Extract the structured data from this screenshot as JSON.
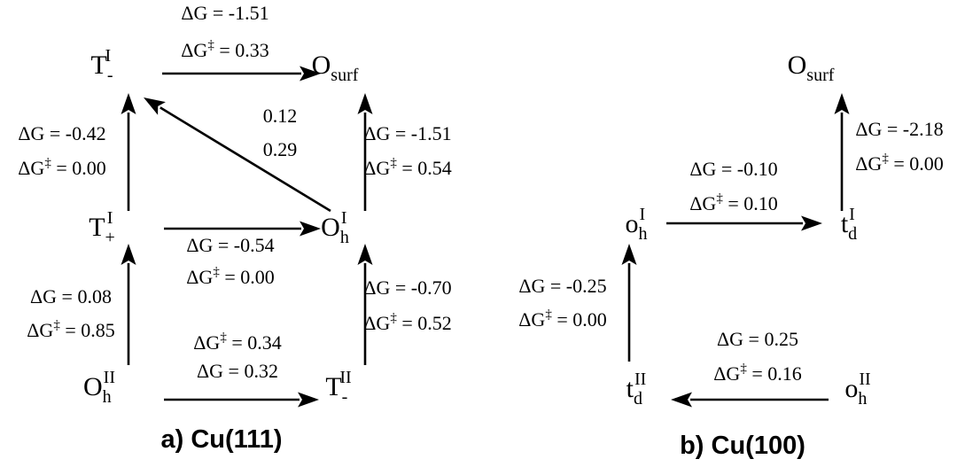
{
  "panels": [
    {
      "caption": "a) Cu(111)",
      "nodes": {
        "T_minus_I": {
          "base": "T",
          "sub": "-",
          "sup": "I"
        },
        "O_surf_a": {
          "base": "O",
          "sub": "surf",
          "sup": ""
        },
        "T_plus_I": {
          "base": "T",
          "sub": "+",
          "sup": "I"
        },
        "Oh_I": {
          "base": "O",
          "sub": "h",
          "sup": "I"
        },
        "Oh_II": {
          "base": "O",
          "sub": "h",
          "sup": "II"
        },
        "T_minus_II": {
          "base": "T",
          "sub": "-",
          "sup": "II"
        }
      },
      "edges": [
        {
          "from": "T_minus_I",
          "to": "O_surf_a",
          "label_top": "ΔG = -1.51",
          "label_bottom": "ΔG‡ = 0.33"
        },
        {
          "from": "Oh_I",
          "to": "T_minus_I",
          "label_top": "0.12",
          "label_bottom": "0.29"
        },
        {
          "from": "T_plus_I",
          "to": "T_minus_I",
          "label_top": "ΔG = -0.42",
          "label_bottom": "ΔG‡ = 0.00"
        },
        {
          "from": "Oh_I",
          "to": "O_surf_a",
          "label_top": "ΔG = -1.51",
          "label_bottom": "ΔG‡ = 0.54"
        },
        {
          "from": "T_plus_I",
          "to": "Oh_I",
          "label_top": "ΔG = -0.54",
          "label_bottom": "ΔG‡ = 0.00"
        },
        {
          "from": "Oh_II",
          "to": "T_plus_I",
          "label_top": "ΔG = 0.08",
          "label_bottom": "ΔG‡ = 0.85"
        },
        {
          "from": "T_minus_II",
          "to": "Oh_I",
          "label_top": "ΔG = -0.70",
          "label_bottom": "ΔG‡ = 0.52"
        },
        {
          "from": "Oh_II",
          "to": "T_minus_II",
          "label_top": "ΔG‡ = 0.34",
          "label_bottom": "ΔG = 0.32"
        }
      ]
    },
    {
      "caption": "b) Cu(100)",
      "nodes": {
        "O_surf_b": {
          "base": "O",
          "sub": "surf",
          "sup": ""
        },
        "oh_I": {
          "base": "o",
          "sub": "h",
          "sup": "I"
        },
        "td_I": {
          "base": "t",
          "sub": "d",
          "sup": "I"
        },
        "td_II": {
          "base": "t",
          "sub": "d",
          "sup": "II"
        },
        "oh_II": {
          "base": "o",
          "sub": "h",
          "sup": "II"
        }
      },
      "edges": [
        {
          "from": "td_I",
          "to": "O_surf_b",
          "label_top": "ΔG = -2.18",
          "label_bottom": "ΔG‡ = 0.00"
        },
        {
          "from": "oh_I",
          "to": "td_I",
          "label_top": "ΔG = -0.10",
          "label_bottom": "ΔG‡ = 0.10"
        },
        {
          "from": "td_II",
          "to": "oh_I",
          "label_top": "ΔG = -0.25",
          "label_bottom": "ΔG‡ = 0.00"
        },
        {
          "from": "oh_II",
          "to": "td_II",
          "label_top": "ΔG = 0.25",
          "label_bottom": "ΔG‡ = 0.16"
        }
      ]
    }
  ]
}
